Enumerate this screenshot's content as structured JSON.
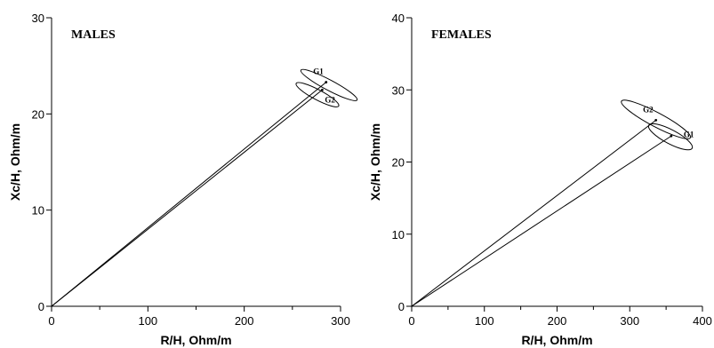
{
  "chart_data": [
    {
      "type": "scatter",
      "title": "MALES",
      "xlabel": "R/H, Ohm/m",
      "ylabel": "Xc/H, Ohm/m",
      "xlim": [
        0,
        300
      ],
      "ylim": [
        0,
        30
      ],
      "xticks": [
        0,
        100,
        200,
        300
      ],
      "yticks": [
        0,
        10,
        20,
        30
      ],
      "grid": false,
      "series": [
        {
          "name": "G1",
          "vector_from": [
            0,
            0
          ],
          "point": [
            285,
            23.3
          ],
          "ellipse_center": [
            288,
            23.0
          ],
          "ellipse_semi_axes": [
            14,
            3.3
          ],
          "ellipse_angle_deg": -62,
          "label_position": "top-left"
        },
        {
          "name": "G2",
          "point": [
            281,
            22.5
          ],
          "ellipse_center": [
            276,
            22.0
          ],
          "ellipse_semi_axes": [
            13,
            2.5
          ],
          "ellipse_angle_deg": -62,
          "label_position": "bottom-right"
        }
      ]
    },
    {
      "type": "scatter",
      "title": "FEMALES",
      "xlabel": "R/H, Ohm/m",
      "ylabel": "Xc/H, Ohm/m",
      "xlim": [
        0,
        400
      ],
      "ylim": [
        0,
        40
      ],
      "xticks": [
        0,
        100,
        200,
        300,
        400
      ],
      "yticks": [
        0,
        10,
        20,
        30,
        40
      ],
      "grid": false,
      "series": [
        {
          "name": "G2",
          "vector_from": [
            0,
            0
          ],
          "point": [
            336,
            25.8
          ],
          "ellipse_center": [
            336,
            25.9
          ],
          "ellipse_semi_axes": [
            40,
            5.4
          ],
          "ellipse_angle_deg": -62,
          "label_position": "top-left"
        },
        {
          "name": "G1",
          "point": [
            357,
            23.6
          ],
          "ellipse_center": [
            356,
            23.5
          ],
          "ellipse_semi_axes": [
            39,
            3.4
          ],
          "ellipse_angle_deg": -62,
          "label_position": "right"
        }
      ]
    }
  ]
}
